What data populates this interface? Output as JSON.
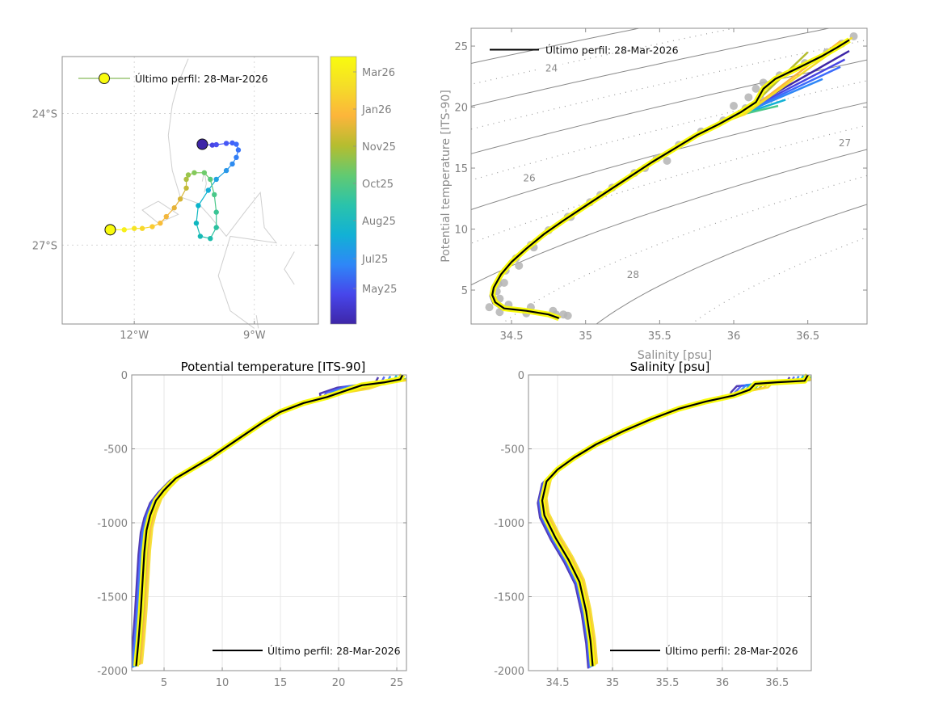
{
  "chart_data": [
    {
      "id": "map",
      "type": "scatter",
      "title": "",
      "xlabel": "",
      "ylabel": "",
      "xlim": [
        -13.8,
        -7.4
      ],
      "ylim": [
        -28.8,
        -22.7
      ],
      "xticks": [
        {
          "value": -12,
          "label": "12°W"
        },
        {
          "value": -9,
          "label": "9°W"
        }
      ],
      "yticks": [
        {
          "value": -24,
          "label": "24°S"
        },
        {
          "value": -27,
          "label": "27°S"
        }
      ],
      "grid": "dotted",
      "legend": {
        "position": "top-left",
        "label": "Último perfil: 28-Mar-2026",
        "marker_color": "#f9fb0e",
        "line_color": "#6aa832"
      },
      "colorbar": {
        "ticks": [
          "May25",
          "Jul25",
          "Aug25",
          "Oct25",
          "Nov25",
          "Jan26",
          "Mar26"
        ],
        "colormap": "parula",
        "colors": [
          "#3e26a8",
          "#4746eb",
          "#2e87f7",
          "#12b1d5",
          "#2ac3ab",
          "#61ca72",
          "#b5bd2f",
          "#fcb53b",
          "#f5dd28",
          "#f9fb0e"
        ]
      },
      "coastline": [
        [
          [
            -10.65,
            -22.75
          ],
          [
            -10.9,
            -23.3
          ],
          [
            -11.05,
            -23.8
          ],
          [
            -11.15,
            -24.5
          ],
          [
            -11.05,
            -25.3
          ],
          [
            -10.85,
            -25.9
          ],
          [
            -10.4,
            -26.05
          ],
          [
            -10.1,
            -26.35
          ],
          [
            -9.7,
            -26.8
          ],
          [
            -9.2,
            -26.2
          ],
          [
            -8.85,
            -25.8
          ],
          [
            -8.75,
            -26.6
          ],
          [
            -8.45,
            -26.95
          ],
          [
            -9.6,
            -26.8
          ],
          [
            -9.9,
            -27.7
          ],
          [
            -9.6,
            -28.5
          ],
          [
            -9.0,
            -28.9
          ]
        ],
        [
          [
            -11.4,
            -26.0
          ],
          [
            -11.8,
            -26.2
          ],
          [
            -11.4,
            -26.5
          ],
          [
            -10.9,
            -26.3
          ],
          [
            -11.4,
            -26.0
          ]
        ],
        [
          [
            -10.3,
            -25.55
          ],
          [
            -10.25,
            -25.3
          ],
          [
            -10.2,
            -25.6
          ],
          [
            -10.25,
            -25.8
          ]
        ],
        [
          [
            -8.0,
            -27.15
          ],
          [
            -8.25,
            -27.55
          ],
          [
            -8.0,
            -27.9
          ]
        ],
        [
          [
            -8.95,
            -28.6
          ],
          [
            -8.9,
            -28.9
          ]
        ]
      ],
      "trajectory": [
        {
          "lon": -10.3,
          "lat": -24.7,
          "color": "#3e26a8"
        },
        {
          "lon": -10.05,
          "lat": -24.72,
          "color": "#4845e2"
        },
        {
          "lon": -9.95,
          "lat": -24.71,
          "color": "#4a4ef0"
        },
        {
          "lon": -9.7,
          "lat": -24.68,
          "color": "#4657f6"
        },
        {
          "lon": -9.55,
          "lat": -24.67,
          "color": "#4261f9"
        },
        {
          "lon": -9.45,
          "lat": -24.7,
          "color": "#3d6bfb"
        },
        {
          "lon": -9.4,
          "lat": -24.83,
          "color": "#3874f9"
        },
        {
          "lon": -9.45,
          "lat": -25.0,
          "color": "#337ff5"
        },
        {
          "lon": -9.55,
          "lat": -25.15,
          "color": "#2d8bf0"
        },
        {
          "lon": -9.7,
          "lat": -25.3,
          "color": "#2896e9"
        },
        {
          "lon": -9.95,
          "lat": -25.5,
          "color": "#20a2e0"
        },
        {
          "lon": -10.15,
          "lat": -25.75,
          "color": "#16aed6"
        },
        {
          "lon": -10.4,
          "lat": -26.1,
          "color": "#0ab4cc"
        },
        {
          "lon": -10.45,
          "lat": -26.5,
          "color": "#0fb7c0"
        },
        {
          "lon": -10.35,
          "lat": -26.8,
          "color": "#17bab6"
        },
        {
          "lon": -10.1,
          "lat": -26.85,
          "color": "#1fbdac"
        },
        {
          "lon": -9.95,
          "lat": -26.6,
          "color": "#2bc1a0"
        },
        {
          "lon": -9.95,
          "lat": -26.25,
          "color": "#3ac595"
        },
        {
          "lon": -10.0,
          "lat": -25.85,
          "color": "#4ac889"
        },
        {
          "lon": -10.1,
          "lat": -25.5,
          "color": "#5aca7b"
        },
        {
          "lon": -10.25,
          "lat": -25.35,
          "color": "#6dcb6c"
        },
        {
          "lon": -10.5,
          "lat": -25.35,
          "color": "#84c95c"
        },
        {
          "lon": -10.65,
          "lat": -25.4,
          "color": "#9ac64d"
        },
        {
          "lon": -10.7,
          "lat": -25.5,
          "color": "#afc041"
        },
        {
          "lon": -10.7,
          "lat": -25.7,
          "color": "#c4ba38"
        },
        {
          "lon": -10.85,
          "lat": -25.95,
          "color": "#d6b536"
        },
        {
          "lon": -11.0,
          "lat": -26.15,
          "color": "#e5b339"
        },
        {
          "lon": -11.2,
          "lat": -26.35,
          "color": "#f2b63c"
        },
        {
          "lon": -11.35,
          "lat": -26.5,
          "color": "#f9bd39"
        },
        {
          "lon": -11.55,
          "lat": -26.58,
          "color": "#facb31"
        },
        {
          "lon": -11.8,
          "lat": -26.62,
          "color": "#f8d82b"
        },
        {
          "lon": -12.0,
          "lat": -26.62,
          "color": "#f6e424"
        },
        {
          "lon": -12.25,
          "lat": -26.65,
          "color": "#f7ef1a"
        },
        {
          "lon": -12.6,
          "lat": -26.65,
          "color": "#f9fb0e"
        }
      ],
      "first_profile": {
        "lon": -10.3,
        "lat": -24.7,
        "color": "#3e26a8"
      },
      "last_profile": {
        "lon": -12.6,
        "lat": -26.65,
        "color": "#f9fb0e"
      }
    },
    {
      "id": "ts",
      "type": "line",
      "title": "",
      "xlabel": "Salinity [psu]",
      "ylabel": "Potential temperature [ITS-90]",
      "xlim": [
        34.227,
        36.9
      ],
      "ylim": [
        2.22,
        26.46
      ],
      "xticks": [
        34.5,
        35,
        35.5,
        36,
        36.5
      ],
      "yticks": [
        5,
        10,
        15,
        20,
        25
      ],
      "legend": {
        "position": "top-left",
        "label": "Último perfil: 28-Mar-2026",
        "line_color": "#000000"
      },
      "isopycnal_labels": [
        {
          "label": "24",
          "s": 34.77,
          "t": 23.1
        },
        {
          "label": "26",
          "s": 34.62,
          "t": 14.1
        },
        {
          "label": "27",
          "s": 36.75,
          "t": 17.0
        },
        {
          "label": "28",
          "s": 35.32,
          "t": 6.2
        }
      ],
      "last_profile": [
        [
          34.82,
          2.7
        ],
        [
          34.75,
          3.0
        ],
        [
          34.6,
          3.3
        ],
        [
          34.45,
          3.5
        ],
        [
          34.39,
          4.0
        ],
        [
          34.37,
          4.6
        ],
        [
          34.38,
          5.2
        ],
        [
          34.43,
          6.3
        ],
        [
          34.5,
          7.3
        ],
        [
          34.6,
          8.4
        ],
        [
          34.72,
          9.6
        ],
        [
          34.85,
          10.7
        ],
        [
          35.0,
          11.9
        ],
        [
          35.15,
          13.1
        ],
        [
          35.3,
          14.3
        ],
        [
          35.45,
          15.5
        ],
        [
          35.6,
          16.6
        ],
        [
          35.75,
          17.7
        ],
        [
          35.9,
          18.6
        ],
        [
          36.05,
          19.6
        ],
        [
          36.15,
          20.4
        ],
        [
          36.2,
          21.5
        ],
        [
          36.28,
          22.3
        ],
        [
          36.45,
          23.3
        ],
        [
          36.6,
          24.2
        ],
        [
          36.7,
          24.9
        ],
        [
          36.78,
          25.5
        ]
      ],
      "historical_cloud": [
        [
          34.35,
          3.6
        ],
        [
          34.42,
          3.2
        ],
        [
          34.6,
          3.1
        ],
        [
          34.8,
          3.0
        ],
        [
          34.88,
          2.9
        ],
        [
          34.45,
          5.6
        ],
        [
          34.55,
          7.0
        ],
        [
          34.65,
          8.5
        ],
        [
          34.9,
          11.0
        ],
        [
          35.1,
          12.8
        ],
        [
          35.4,
          15.0
        ],
        [
          35.55,
          15.6
        ],
        [
          36.0,
          20.1
        ],
        [
          36.1,
          20.8
        ],
        [
          36.15,
          21.5
        ],
        [
          36.2,
          22.0
        ]
      ],
      "colored_profiles": [
        {
          "color": "#3e26a8",
          "end": [
            36.78,
            24.6
          ]
        },
        {
          "color": "#4845e2",
          "end": [
            36.75,
            23.9
          ]
        },
        {
          "color": "#3d6bfb",
          "end": [
            36.72,
            23.3
          ]
        },
        {
          "color": "#2e87f7",
          "end": [
            36.6,
            22.3
          ]
        },
        {
          "color": "#12b1d5",
          "end": [
            36.35,
            20.6
          ]
        },
        {
          "color": "#4ac889",
          "end": [
            36.3,
            20.1
          ]
        },
        {
          "color": "#b5bd2f",
          "end": [
            36.5,
            24.5
          ]
        },
        {
          "color": "#fcb53b",
          "end": [
            36.72,
            25.4
          ]
        },
        {
          "color": "#f5dd28",
          "end": [
            36.8,
            25.7
          ]
        }
      ]
    },
    {
      "id": "temp-profile",
      "type": "line",
      "title": "Potential temperature [ITS-90]",
      "xlabel": "",
      "ylabel": "",
      "xlim": [
        2.22,
        25.83
      ],
      "ylim": [
        -2000,
        0
      ],
      "xticks": [
        5,
        10,
        15,
        20,
        25
      ],
      "yticks": [
        0,
        -500,
        -1000,
        -1500,
        -2000
      ],
      "grid": true,
      "legend": {
        "position": "bottom-right",
        "label": "Último perfil: 28-Mar-2026",
        "line_color": "#000000"
      },
      "last_profile": [
        [
          2.6,
          -1970
        ],
        [
          2.8,
          -1800
        ],
        [
          3.0,
          -1600
        ],
        [
          3.15,
          -1400
        ],
        [
          3.3,
          -1200
        ],
        [
          3.5,
          -1050
        ],
        [
          3.8,
          -950
        ],
        [
          4.3,
          -850
        ],
        [
          5.0,
          -780
        ],
        [
          6.0,
          -700
        ],
        [
          7.5,
          -630
        ],
        [
          9.0,
          -560
        ],
        [
          10.5,
          -480
        ],
        [
          12.0,
          -400
        ],
        [
          13.5,
          -320
        ],
        [
          15.0,
          -250
        ],
        [
          17.0,
          -190
        ],
        [
          19.0,
          -150
        ],
        [
          20.5,
          -110
        ],
        [
          22.0,
          -70
        ],
        [
          24.0,
          -50
        ],
        [
          25.3,
          -30
        ],
        [
          25.5,
          0
        ]
      ],
      "spread": 0.5
    },
    {
      "id": "sal-profile",
      "type": "line",
      "title": "Salinity [psu]",
      "xlabel": "",
      "ylabel": "",
      "xlim": [
        34.235,
        36.81
      ],
      "ylim": [
        -2000,
        0
      ],
      "xticks": [
        34.5,
        35,
        35.5,
        36,
        36.5
      ],
      "yticks": [
        0,
        -500,
        -1000,
        -1500,
        -2000
      ],
      "grid": true,
      "legend": {
        "position": "bottom-right",
        "label": "Último perfil: 28-Mar-2026",
        "line_color": "#000000"
      },
      "last_profile": [
        [
          34.82,
          -1970
        ],
        [
          34.8,
          -1800
        ],
        [
          34.76,
          -1600
        ],
        [
          34.7,
          -1400
        ],
        [
          34.6,
          -1250
        ],
        [
          34.48,
          -1100
        ],
        [
          34.38,
          -950
        ],
        [
          34.36,
          -850
        ],
        [
          34.4,
          -720
        ],
        [
          34.5,
          -640
        ],
        [
          34.65,
          -560
        ],
        [
          34.85,
          -470
        ],
        [
          35.1,
          -380
        ],
        [
          35.35,
          -300
        ],
        [
          35.6,
          -230
        ],
        [
          35.85,
          -180
        ],
        [
          36.1,
          -140
        ],
        [
          36.25,
          -100
        ],
        [
          36.3,
          -60
        ],
        [
          36.5,
          -50
        ],
        [
          36.75,
          -40
        ],
        [
          36.78,
          0
        ]
      ],
      "spread": 0.04
    }
  ]
}
